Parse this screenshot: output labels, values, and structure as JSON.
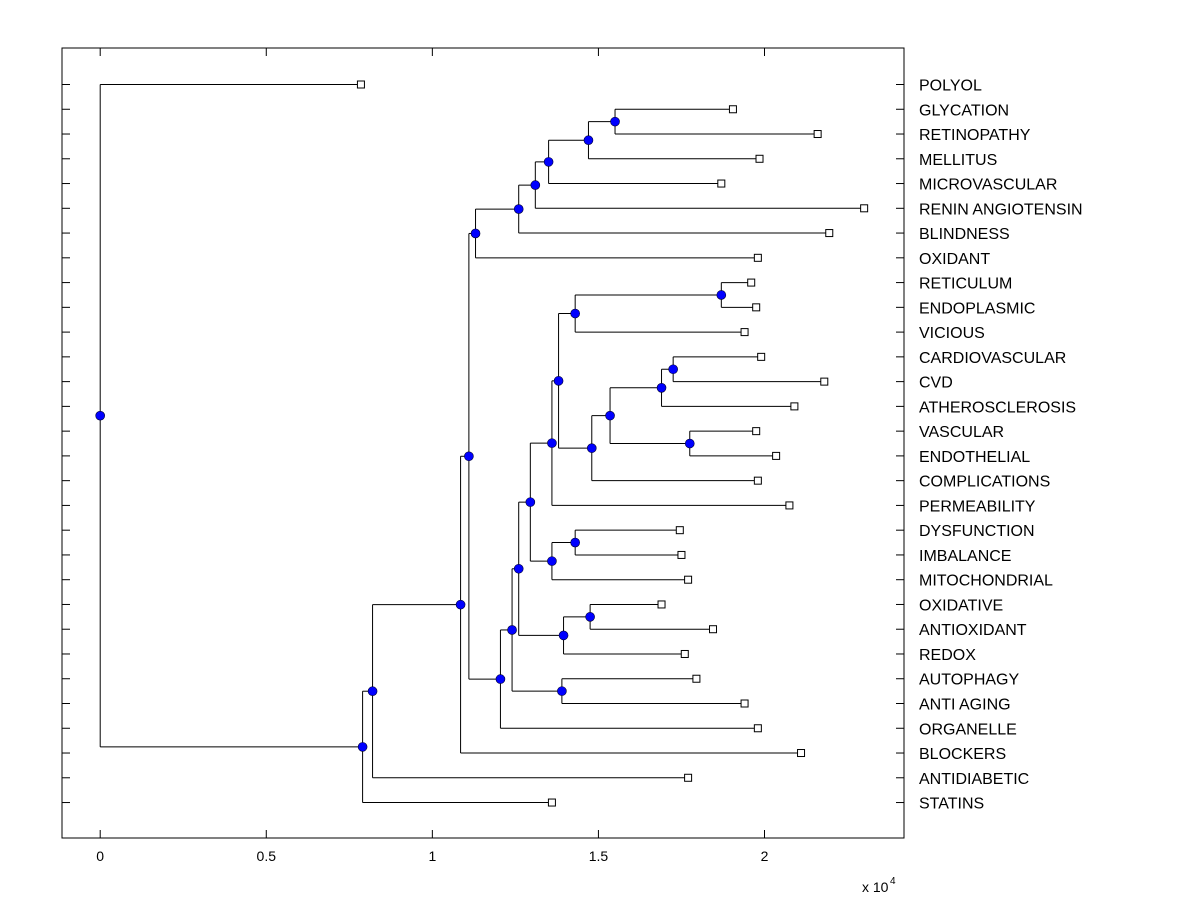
{
  "chart_data": {
    "type": "dendrogram",
    "orientation": "horizontal",
    "xlim": [
      -0.115,
      2.42
    ],
    "x_ticks": [
      0,
      0.5,
      1,
      1.5,
      2
    ],
    "x_tick_labels": [
      "0",
      "0.5",
      "1",
      "1.5",
      "2"
    ],
    "x_multiplier": "x 10",
    "x_multiplier_exponent": "4",
    "node_color": "#0000ff",
    "leaf_marker": "open-square",
    "leaves": [
      {
        "label": "POLYOL",
        "x": 0.785
      },
      {
        "label": "GLYCATION",
        "x": 1.905
      },
      {
        "label": "RETINOPATHY",
        "x": 2.16
      },
      {
        "label": "MELLITUS",
        "x": 1.985
      },
      {
        "label": "MICROVASCULAR",
        "x": 1.87
      },
      {
        "label": "RENIN ANGIOTENSIN",
        "x": 2.3
      },
      {
        "label": "BLINDNESS",
        "x": 2.195
      },
      {
        "label": "OXIDANT",
        "x": 1.98
      },
      {
        "label": "RETICULUM",
        "x": 1.96
      },
      {
        "label": "ENDOPLASMIC",
        "x": 1.975
      },
      {
        "label": "VICIOUS",
        "x": 1.94
      },
      {
        "label": "CARDIOVASCULAR",
        "x": 1.99
      },
      {
        "label": "CVD",
        "x": 2.18
      },
      {
        "label": "ATHEROSCLEROSIS",
        "x": 2.09
      },
      {
        "label": "VASCULAR",
        "x": 1.975
      },
      {
        "label": "ENDOTHELIAL",
        "x": 2.035
      },
      {
        "label": "COMPLICATIONS",
        "x": 1.98
      },
      {
        "label": "PERMEABILITY",
        "x": 2.075
      },
      {
        "label": "DYSFUNCTION",
        "x": 1.745
      },
      {
        "label": "IMBALANCE",
        "x": 1.75
      },
      {
        "label": "MITOCHONDRIAL",
        "x": 1.77
      },
      {
        "label": "OXIDATIVE",
        "x": 1.69
      },
      {
        "label": "ANTIOXIDANT",
        "x": 1.845
      },
      {
        "label": "REDOX",
        "x": 1.76
      },
      {
        "label": "AUTOPHAGY",
        "x": 1.795
      },
      {
        "label": "ANTI AGING",
        "x": 1.94
      },
      {
        "label": "ORGANELLE",
        "x": 1.98
      },
      {
        "label": "BLOCKERS",
        "x": 2.11
      },
      {
        "label": "ANTIDIABETIC",
        "x": 1.77
      },
      {
        "label": "STATINS",
        "x": 1.36
      }
    ],
    "nodes": [
      {
        "id": "n1",
        "x": 1.55,
        "children": [
          "GLYCATION",
          "RETINOPATHY"
        ]
      },
      {
        "id": "n2",
        "x": 1.47,
        "children": [
          "n1",
          "MELLITUS"
        ]
      },
      {
        "id": "n3",
        "x": 1.35,
        "children": [
          "n2",
          "MICROVASCULAR"
        ]
      },
      {
        "id": "n4",
        "x": 1.31,
        "children": [
          "n3",
          "RENIN ANGIOTENSIN"
        ]
      },
      {
        "id": "n5",
        "x": 1.26,
        "children": [
          "n4",
          "BLINDNESS"
        ]
      },
      {
        "id": "n6",
        "x": 1.13,
        "children": [
          "n5",
          "OXIDANT"
        ]
      },
      {
        "id": "n7",
        "x": 1.87,
        "children": [
          "RETICULUM",
          "ENDOPLASMIC"
        ]
      },
      {
        "id": "n8",
        "x": 1.43,
        "children": [
          "n7",
          "VICIOUS"
        ]
      },
      {
        "id": "n9",
        "x": 1.725,
        "children": [
          "CARDIOVASCULAR",
          "CVD"
        ]
      },
      {
        "id": "n10",
        "x": 1.69,
        "children": [
          "n9",
          "ATHEROSCLEROSIS"
        ]
      },
      {
        "id": "n11",
        "x": 1.775,
        "children": [
          "VASCULAR",
          "ENDOTHELIAL"
        ]
      },
      {
        "id": "n12",
        "x": 1.535,
        "children": [
          "n10",
          "n11"
        ]
      },
      {
        "id": "n13",
        "x": 1.48,
        "children": [
          "n12",
          "COMPLICATIONS"
        ]
      },
      {
        "id": "n14",
        "x": 1.38,
        "children": [
          "n8",
          "n13"
        ]
      },
      {
        "id": "n15",
        "x": 1.36,
        "children": [
          "n14",
          "PERMEABILITY"
        ]
      },
      {
        "id": "n16",
        "x": 1.43,
        "children": [
          "DYSFUNCTION",
          "IMBALANCE"
        ]
      },
      {
        "id": "n17",
        "x": 1.36,
        "children": [
          "n16",
          "MITOCHONDRIAL"
        ]
      },
      {
        "id": "n18",
        "x": 1.295,
        "children": [
          "n15",
          "n17"
        ]
      },
      {
        "id": "n19",
        "x": 1.475,
        "children": [
          "OXIDATIVE",
          "ANTIOXIDANT"
        ]
      },
      {
        "id": "n20",
        "x": 1.395,
        "children": [
          "n19",
          "REDOX"
        ]
      },
      {
        "id": "n21",
        "x": 1.26,
        "children": [
          "n18",
          "n20"
        ]
      },
      {
        "id": "n22",
        "x": 1.39,
        "children": [
          "AUTOPHAGY",
          "ANTI AGING"
        ]
      },
      {
        "id": "n23",
        "x": 1.24,
        "children": [
          "n21",
          "n22"
        ]
      },
      {
        "id": "n24",
        "x": 1.205,
        "children": [
          "n23",
          "ORGANELLE"
        ]
      },
      {
        "id": "n25",
        "x": 1.11,
        "children": [
          "n6",
          "n24"
        ]
      },
      {
        "id": "n26",
        "x": 1.085,
        "children": [
          "n25",
          "BLOCKERS"
        ]
      },
      {
        "id": "n27",
        "x": 0.82,
        "children": [
          "n26",
          "ANTIDIABETIC"
        ]
      },
      {
        "id": "n28",
        "x": 0.79,
        "children": [
          "n27",
          "STATINS"
        ]
      },
      {
        "id": "n29",
        "x": 0.0,
        "children": [
          "POLYOL",
          "n28"
        ]
      }
    ]
  }
}
